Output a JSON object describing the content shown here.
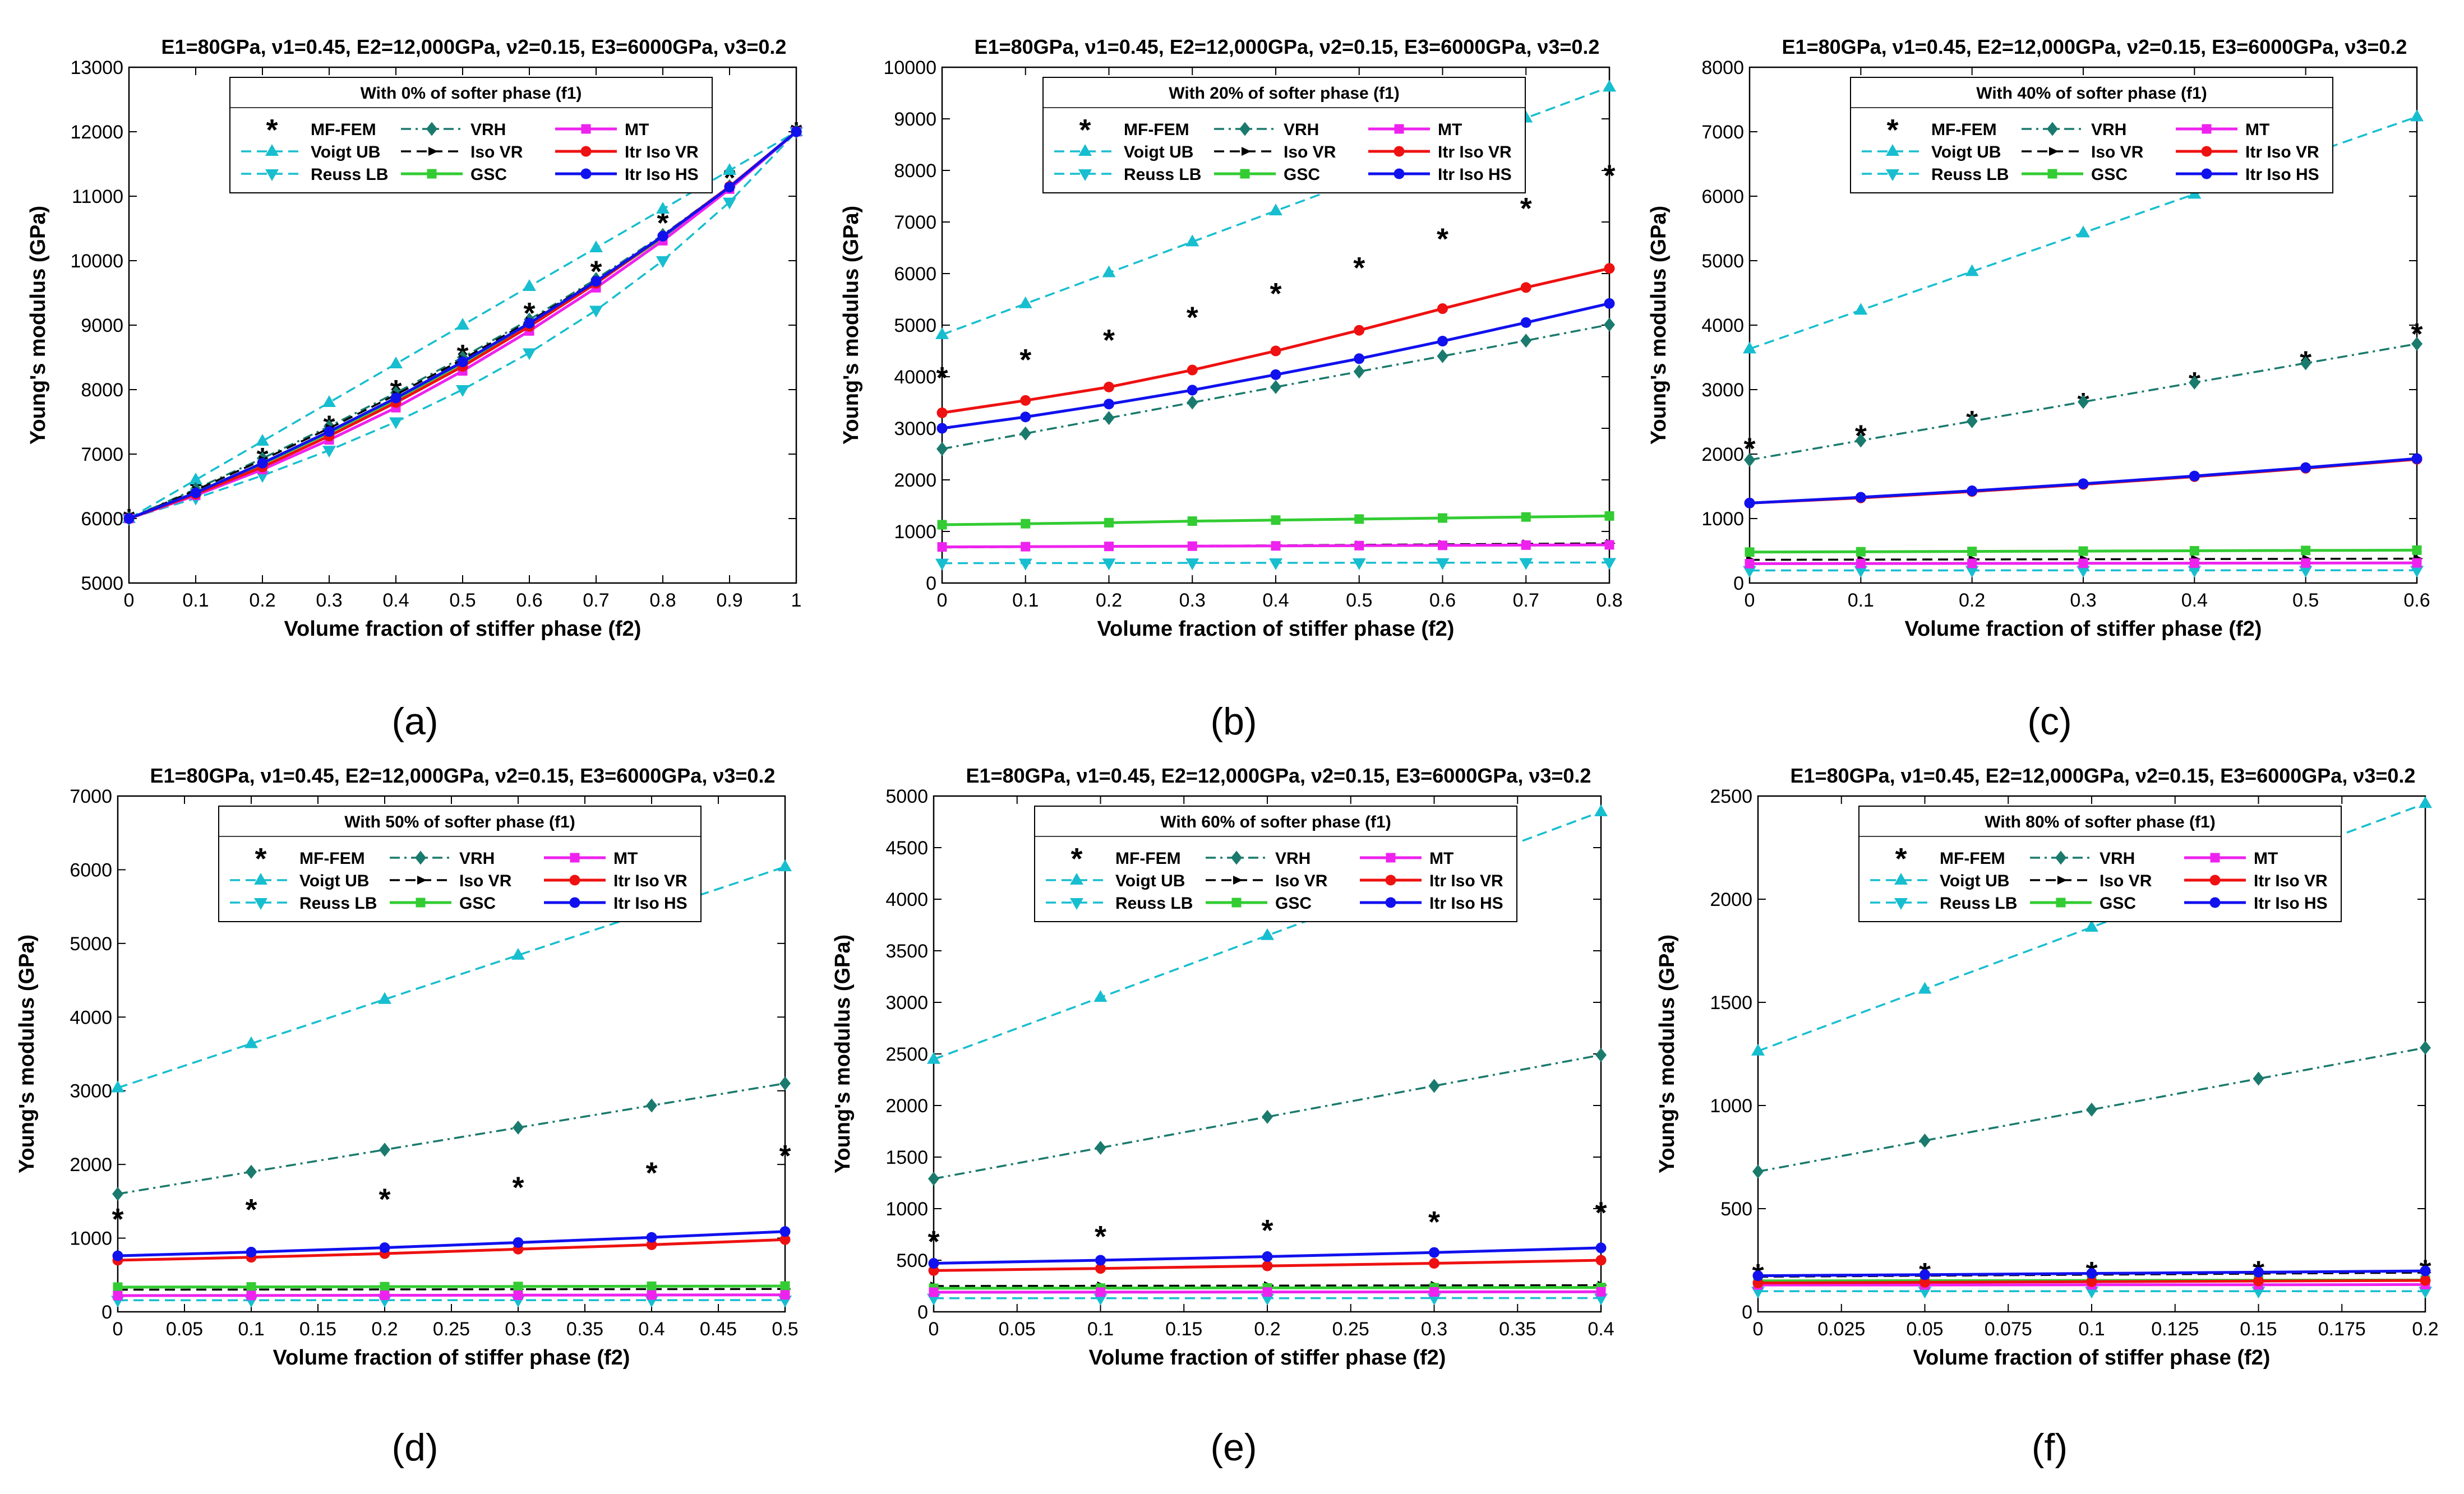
{
  "figure": {
    "panel_header": "E1=80GPa, ν1=0.45,  E2=12,000GPa, ν2=0.15,  E3=6000GPa, ν3=0.2",
    "panel_letters": [
      "(a)",
      "(b)",
      "(c)",
      "(d)",
      "(e)",
      "(f)"
    ]
  },
  "series_styles": [
    {
      "name": "MF-FEM",
      "color": "#000000",
      "line": "none",
      "marker": "asterisk"
    },
    {
      "name": "Voigt UB",
      "color": "#17becf",
      "line": "dash",
      "marker": "tri-up"
    },
    {
      "name": "Reuss LB",
      "color": "#17becf",
      "line": "dash",
      "marker": "tri-down"
    },
    {
      "name": "VRH",
      "color": "#1a7a6d",
      "line": "dashdot",
      "marker": "diamond"
    },
    {
      "name": "Iso VR",
      "color": "#000000",
      "line": "dash",
      "marker": "arrow"
    },
    {
      "name": "GSC",
      "color": "#33cc33",
      "line": "solid",
      "marker": "square"
    },
    {
      "name": "MT",
      "color": "#ee22ee",
      "line": "solid",
      "marker": "square"
    },
    {
      "name": "Itr Iso VR",
      "color": "#ee1111",
      "line": "solid",
      "marker": "circle"
    },
    {
      "name": "Itr Iso HS",
      "color": "#1111ee",
      "line": "solid",
      "marker": "circle"
    }
  ],
  "chart_data": [
    {
      "type": "line",
      "title": "E1=80GPa, ν1=0.45,  E2=12,000GPa, ν2=0.15,  E3=6000GPa, ν3=0.2",
      "legend_title": "With 0% of softer phase (f1)",
      "xlabel": "Volume fraction of stiffer phase (f2)",
      "ylabel": "Young's modulus (GPa)",
      "xlim": [
        0,
        1
      ],
      "ylim": [
        5000,
        13000
      ],
      "xticks": [
        "0",
        "0.1",
        "0.2",
        "0.3",
        "0.4",
        "0.5",
        "0.6",
        "0.7",
        "0.8",
        "0.9",
        "1"
      ],
      "yticks": [
        "5000",
        "6000",
        "7000",
        "8000",
        "9000",
        "10000",
        "11000",
        "12000",
        "13000"
      ],
      "x": [
        0,
        0.1,
        0.2,
        0.3,
        0.4,
        0.5,
        0.6,
        0.7,
        0.8,
        0.9,
        1.0
      ],
      "series": [
        {
          "name": "MF-FEM",
          "values": [
            6000,
            6450,
            6950,
            7450,
            8000,
            8550,
            9200,
            9850,
            10600,
            11300,
            12000
          ]
        },
        {
          "name": "Voigt UB",
          "values": [
            6000,
            6600,
            7200,
            7800,
            8400,
            9000,
            9600,
            10200,
            10800,
            11400,
            12000
          ]
        },
        {
          "name": "Reuss LB",
          "values": [
            6000,
            6316,
            6667,
            7059,
            7500,
            8000,
            8571,
            9231,
            10000,
            10909,
            12000
          ]
        },
        {
          "name": "VRH",
          "values": [
            6000,
            6458,
            6933,
            7429,
            7950,
            8500,
            9086,
            9715,
            10400,
            11155,
            12000
          ]
        },
        {
          "name": "Iso VR",
          "values": [
            6000,
            6440,
            6910,
            7400,
            7920,
            8470,
            9060,
            9690,
            10380,
            11140,
            12000
          ]
        },
        {
          "name": "GSC",
          "values": [
            6000,
            6400,
            6850,
            7330,
            7850,
            8410,
            9010,
            9660,
            10360,
            11130,
            12000
          ]
        },
        {
          "name": "MT",
          "values": [
            6000,
            6360,
            6760,
            7220,
            7720,
            8290,
            8910,
            9580,
            10310,
            11110,
            12000
          ]
        },
        {
          "name": "Itr Iso VR",
          "values": [
            6000,
            6380,
            6800,
            7280,
            7800,
            8360,
            8980,
            9650,
            10380,
            11150,
            12000
          ]
        },
        {
          "name": "Itr Iso HS",
          "values": [
            6000,
            6400,
            6860,
            7350,
            7870,
            8430,
            9030,
            9680,
            10380,
            11140,
            12000
          ]
        }
      ]
    },
    {
      "type": "line",
      "title": "E1=80GPa, ν1=0.45,  E2=12,000GPa, ν2=0.15,  E3=6000GPa, ν3=0.2",
      "legend_title": "With 20% of softer phase (f1)",
      "xlabel": "Volume fraction of stiffer phase (f2)",
      "ylabel": "Young's modulus (GPa)",
      "xlim": [
        0,
        0.8
      ],
      "ylim": [
        0,
        10000
      ],
      "xticks": [
        "0",
        "0.1",
        "0.2",
        "0.3",
        "0.4",
        "0.5",
        "0.6",
        "0.7",
        "0.8"
      ],
      "yticks": [
        "0",
        "1000",
        "2000",
        "3000",
        "4000",
        "5000",
        "6000",
        "7000",
        "8000",
        "9000",
        "10000"
      ],
      "x": [
        0,
        0.1,
        0.2,
        0.3,
        0.4,
        0.5,
        0.6,
        0.7,
        0.8
      ],
      "series": [
        {
          "name": "MF-FEM",
          "values": [
            4000,
            4350,
            4730,
            5170,
            5630,
            6130,
            6690,
            7280,
            7920
          ]
        },
        {
          "name": "Voigt UB",
          "values": [
            4816,
            5416,
            6016,
            6616,
            7216,
            7816,
            8416,
            9016,
            9616
          ]
        },
        {
          "name": "Reuss LB",
          "values": [
            385,
            386,
            388,
            390,
            391,
            393,
            394,
            396,
            398
          ]
        },
        {
          "name": "VRH",
          "values": [
            2600,
            2900,
            3200,
            3500,
            3800,
            4100,
            4400,
            4700,
            5010
          ]
        },
        {
          "name": "Iso VR",
          "values": [
            690,
            700,
            710,
            720,
            730,
            740,
            750,
            760,
            770
          ]
        },
        {
          "name": "GSC",
          "values": [
            1130,
            1150,
            1170,
            1200,
            1220,
            1240,
            1260,
            1280,
            1300
          ]
        },
        {
          "name": "MT",
          "values": [
            700,
            705,
            710,
            715,
            720,
            725,
            730,
            735,
            740
          ]
        },
        {
          "name": "Itr Iso VR",
          "values": [
            3300,
            3540,
            3800,
            4130,
            4500,
            4900,
            5320,
            5730,
            6100
          ]
        },
        {
          "name": "Itr Iso HS",
          "values": [
            3000,
            3220,
            3470,
            3740,
            4040,
            4350,
            4690,
            5050,
            5420
          ]
        }
      ]
    },
    {
      "type": "line",
      "title": "E1=80GPa, ν1=0.45,  E2=12,000GPa, ν2=0.15,  E3=6000GPa, ν3=0.2",
      "legend_title": "With 40% of softer phase (f1)",
      "xlabel": "Volume fraction of stiffer phase (f2)",
      "ylabel": "Young's modulus (GPa)",
      "xlim": [
        0,
        0.6
      ],
      "ylim": [
        0,
        8000
      ],
      "xticks": [
        "0",
        "0.1",
        "0.2",
        "0.3",
        "0.4",
        "0.5",
        "0.6"
      ],
      "yticks": [
        "0",
        "1000",
        "2000",
        "3000",
        "4000",
        "5000",
        "6000",
        "7000",
        "8000"
      ],
      "x": [
        0,
        0.1,
        0.2,
        0.3,
        0.4,
        0.5,
        0.6
      ],
      "series": [
        {
          "name": "MF-FEM",
          "values": [
            2100,
            2300,
            2520,
            2800,
            3120,
            3450,
            3880
          ]
        },
        {
          "name": "Voigt UB",
          "values": [
            3632,
            4232,
            4832,
            5432,
            6032,
            6632,
            7232
          ]
        },
        {
          "name": "Reuss LB",
          "values": [
            195,
            196,
            196,
            197,
            197,
            198,
            198
          ]
        },
        {
          "name": "VRH",
          "values": [
            1910,
            2210,
            2510,
            2810,
            3110,
            3410,
            3710
          ]
        },
        {
          "name": "Iso VR",
          "values": [
            360,
            363,
            366,
            369,
            372,
            375,
            378
          ]
        },
        {
          "name": "GSC",
          "values": [
            480,
            485,
            490,
            495,
            500,
            505,
            510
          ]
        },
        {
          "name": "MT",
          "values": [
            300,
            302,
            304,
            306,
            308,
            310,
            312
          ]
        },
        {
          "name": "Itr Iso VR",
          "values": [
            1240,
            1320,
            1420,
            1530,
            1650,
            1780,
            1920
          ]
        },
        {
          "name": "Itr Iso HS",
          "values": [
            1240,
            1330,
            1430,
            1540,
            1660,
            1790,
            1930
          ]
        }
      ]
    },
    {
      "type": "line",
      "title": "E1=80GPa, ν1=0.45,  E2=12,000GPa, ν2=0.15,  E3=6000GPa, ν3=0.2",
      "legend_title": "With 50% of softer phase (f1)",
      "xlabel": "Volume fraction of stiffer phase (f2)",
      "ylabel": "Young's modulus (GPa)",
      "xlim": [
        0,
        0.5
      ],
      "ylim": [
        0,
        7000
      ],
      "xticks": [
        "0",
        "0.05",
        "0.1",
        "0.15",
        "0.2",
        "0.25",
        "0.3",
        "0.35",
        "0.4",
        "0.45",
        "0.5"
      ],
      "yticks": [
        "0",
        "1000",
        "2000",
        "3000",
        "4000",
        "5000",
        "6000",
        "7000"
      ],
      "x": [
        0,
        0.1,
        0.2,
        0.3,
        0.4,
        0.5
      ],
      "series": [
        {
          "name": "MF-FEM",
          "values": [
            1270,
            1400,
            1540,
            1700,
            1900,
            2130
          ]
        },
        {
          "name": "Voigt UB",
          "values": [
            3040,
            3640,
            4240,
            4840,
            5440,
            6040
          ]
        },
        {
          "name": "Reuss LB",
          "values": [
            157,
            157,
            158,
            158,
            158,
            159
          ]
        },
        {
          "name": "VRH",
          "values": [
            1600,
            1900,
            2200,
            2500,
            2800,
            3100
          ]
        },
        {
          "name": "Iso VR",
          "values": [
            300,
            302,
            304,
            306,
            308,
            310
          ]
        },
        {
          "name": "GSC",
          "values": [
            335,
            338,
            341,
            344,
            347,
            350
          ]
        },
        {
          "name": "MT",
          "values": [
            220,
            222,
            224,
            226,
            228,
            230
          ]
        },
        {
          "name": "Itr Iso VR",
          "values": [
            700,
            740,
            790,
            850,
            910,
            980
          ]
        },
        {
          "name": "Itr Iso HS",
          "values": [
            760,
            810,
            870,
            940,
            1010,
            1090
          ]
        }
      ]
    },
    {
      "type": "line",
      "title": "E1=80GPa, ν1=0.45,  E2=12,000GPa, ν2=0.15,  E3=6000GPa, ν3=0.2",
      "legend_title": "With 60% of softer phase (f1)",
      "xlabel": "Volume fraction of stiffer phase (f2)",
      "ylabel": "Young's modulus (GPa)",
      "xlim": [
        0,
        0.4
      ],
      "ylim": [
        0,
        5000
      ],
      "xticks": [
        "0",
        "0.05",
        "0.1",
        "0.15",
        "0.2",
        "0.25",
        "0.3",
        "0.35",
        "0.4"
      ],
      "yticks": [
        "0",
        "500",
        "1000",
        "1500",
        "2000",
        "2500",
        "3000",
        "3500",
        "4000",
        "4500",
        "5000"
      ],
      "x": [
        0,
        0.1,
        0.2,
        0.3,
        0.4
      ],
      "series": [
        {
          "name": "MF-FEM",
          "values": [
            690,
            740,
            800,
            880,
            970
          ]
        },
        {
          "name": "Voigt UB",
          "values": [
            2448,
            3048,
            3648,
            4248,
            4848
          ]
        },
        {
          "name": "Reuss LB",
          "values": [
            132,
            132,
            132,
            133,
            133
          ]
        },
        {
          "name": "VRH",
          "values": [
            1290,
            1590,
            1890,
            2190,
            2490
          ]
        },
        {
          "name": "Iso VR",
          "values": [
            250,
            252,
            254,
            256,
            258
          ]
        },
        {
          "name": "GSC",
          "values": [
            228,
            230,
            232,
            234,
            236
          ]
        },
        {
          "name": "MT",
          "values": [
            190,
            191,
            192,
            193,
            194
          ]
        },
        {
          "name": "Itr Iso VR",
          "values": [
            400,
            420,
            445,
            470,
            500
          ]
        },
        {
          "name": "Itr Iso HS",
          "values": [
            470,
            500,
            535,
            575,
            620
          ]
        }
      ]
    },
    {
      "type": "line",
      "title": "E1=80GPa, ν1=0.45,  E2=12,000GPa, ν2=0.15,  E3=6000GPa, ν3=0.2",
      "legend_title": "With 80% of softer phase (f1)",
      "xlabel": "Volume fraction of stiffer phase (f2)",
      "ylabel": "Young's modulus (GPa)",
      "xlim": [
        0,
        0.2
      ],
      "ylim": [
        0,
        2500
      ],
      "xticks": [
        "0",
        "0.025",
        "0.05",
        "0.075",
        "0.1",
        "0.125",
        "0.15",
        "0.175",
        "0.2"
      ],
      "yticks": [
        "0",
        "500",
        "1000",
        "1500",
        "2000",
        "2500"
      ],
      "x": [
        0,
        0.05,
        0.1,
        0.15,
        0.2
      ],
      "series": [
        {
          "name": "MF-FEM",
          "values": [
            185,
            190,
            195,
            200,
            205
          ]
        },
        {
          "name": "Voigt UB",
          "values": [
            1264,
            1564,
            1864,
            2164,
            2464
          ]
        },
        {
          "name": "Reuss LB",
          "values": [
            100,
            100,
            100,
            100,
            100
          ]
        },
        {
          "name": "VRH",
          "values": [
            680,
            830,
            980,
            1130,
            1280
          ]
        },
        {
          "name": "Iso VR",
          "values": [
            170,
            175,
            180,
            185,
            190
          ]
        },
        {
          "name": "GSC",
          "values": [
            150,
            151,
            152,
            153,
            154
          ]
        },
        {
          "name": "MT",
          "values": [
            130,
            130,
            131,
            131,
            132
          ]
        },
        {
          "name": "Itr Iso VR",
          "values": [
            140,
            143,
            146,
            149,
            152
          ]
        },
        {
          "name": "Itr Iso HS",
          "values": [
            175,
            180,
            186,
            192,
            198
          ]
        }
      ]
    }
  ]
}
